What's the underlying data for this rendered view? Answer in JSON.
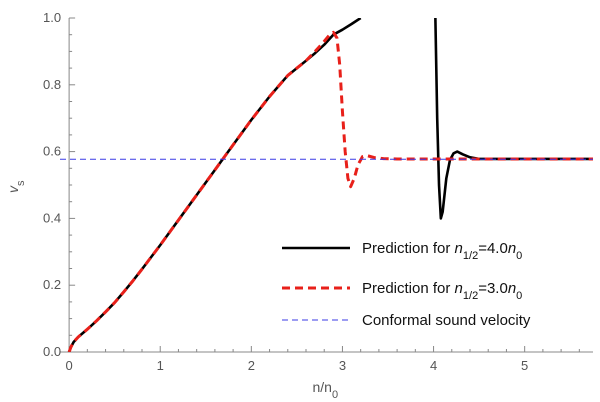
{
  "chart_data": {
    "type": "line",
    "title": "",
    "xlabel": {
      "base": "n/n",
      "sub": "0"
    },
    "ylabel": {
      "base": "v",
      "sub": "s"
    },
    "xlim": [
      -0.1,
      5.75
    ],
    "ylim": [
      0.0,
      1.0
    ],
    "x_ticks": [
      0,
      1,
      2,
      3,
      4,
      5
    ],
    "x_tick_labels": [
      "0",
      "1",
      "2",
      "3",
      "4",
      "5"
    ],
    "y_ticks": [
      0.0,
      0.2,
      0.4,
      0.6,
      0.8,
      1.0
    ],
    "y_tick_labels": [
      "0.0",
      "0.2",
      "0.4",
      "0.6",
      "0.8",
      "1.0"
    ],
    "grid": false,
    "legend_position": "bottom-right",
    "series": [
      {
        "legend": {
          "prefix": "Prediction for ",
          "n": "n",
          "sub": "1/2",
          "mid": "=4.0",
          "n2": "n",
          "sub2": "0"
        },
        "color": "#000000",
        "style": "solid",
        "segments": [
          [
            [
              0.0,
              0.0
            ],
            [
              0.02,
              0.015
            ],
            [
              0.05,
              0.03
            ],
            [
              0.1,
              0.045
            ],
            [
              0.2,
              0.068
            ],
            [
              0.3,
              0.093
            ],
            [
              0.4,
              0.12
            ],
            [
              0.5,
              0.148
            ],
            [
              0.6,
              0.18
            ],
            [
              0.7,
              0.213
            ],
            [
              0.8,
              0.248
            ],
            [
              0.9,
              0.284
            ],
            [
              1.0,
              0.32
            ],
            [
              1.2,
              0.395
            ],
            [
              1.4,
              0.47
            ],
            [
              1.6,
              0.545
            ],
            [
              1.8,
              0.62
            ],
            [
              2.0,
              0.695
            ],
            [
              2.2,
              0.765
            ],
            [
              2.4,
              0.828
            ],
            [
              2.6,
              0.872
            ],
            [
              2.7,
              0.895
            ],
            [
              2.8,
              0.92
            ],
            [
              2.9,
              0.95
            ],
            [
              3.0,
              0.965
            ],
            [
              3.1,
              0.982
            ],
            [
              3.2,
              1.0
            ]
          ],
          [
            [
              4.02,
              1.0
            ],
            [
              4.03,
              0.85
            ],
            [
              4.04,
              0.7
            ],
            [
              4.06,
              0.5
            ],
            [
              4.08,
              0.4
            ],
            [
              4.1,
              0.42
            ],
            [
              4.14,
              0.52
            ],
            [
              4.18,
              0.575
            ],
            [
              4.22,
              0.595
            ],
            [
              4.26,
              0.6
            ],
            [
              4.32,
              0.592
            ],
            [
              4.4,
              0.583
            ],
            [
              4.5,
              0.578
            ],
            [
              4.7,
              0.578
            ],
            [
              5.0,
              0.578
            ],
            [
              5.3,
              0.578
            ],
            [
              5.6,
              0.578
            ],
            [
              5.75,
              0.578
            ]
          ]
        ]
      },
      {
        "legend": {
          "prefix": "Prediction for ",
          "n": "n",
          "sub": "1/2",
          "mid": "=3.0",
          "n2": "n",
          "sub2": "0"
        },
        "color": "#e8201a",
        "style": "dashed",
        "segments": [
          [
            [
              0.0,
              0.0
            ],
            [
              0.02,
              0.015
            ],
            [
              0.05,
              0.03
            ],
            [
              0.1,
              0.045
            ],
            [
              0.2,
              0.068
            ],
            [
              0.3,
              0.093
            ],
            [
              0.4,
              0.12
            ],
            [
              0.5,
              0.148
            ],
            [
              0.6,
              0.18
            ],
            [
              0.7,
              0.213
            ],
            [
              0.8,
              0.248
            ],
            [
              0.9,
              0.284
            ],
            [
              1.0,
              0.32
            ],
            [
              1.2,
              0.395
            ],
            [
              1.4,
              0.47
            ],
            [
              1.6,
              0.545
            ],
            [
              1.8,
              0.62
            ],
            [
              2.0,
              0.695
            ],
            [
              2.2,
              0.765
            ],
            [
              2.4,
              0.828
            ],
            [
              2.6,
              0.872
            ],
            [
              2.7,
              0.9
            ],
            [
              2.8,
              0.93
            ],
            [
              2.86,
              0.95
            ],
            [
              2.9,
              0.957
            ],
            [
              2.94,
              0.94
            ],
            [
              2.97,
              0.86
            ],
            [
              3.0,
              0.72
            ],
            [
              3.03,
              0.6
            ],
            [
              3.06,
              0.52
            ],
            [
              3.09,
              0.495
            ],
            [
              3.13,
              0.52
            ],
            [
              3.17,
              0.56
            ],
            [
              3.22,
              0.585
            ],
            [
              3.27,
              0.588
            ],
            [
              3.35,
              0.582
            ],
            [
              3.45,
              0.579
            ],
            [
              3.6,
              0.578
            ],
            [
              4.0,
              0.578
            ],
            [
              4.5,
              0.578
            ],
            [
              5.0,
              0.578
            ],
            [
              5.5,
              0.578
            ],
            [
              5.75,
              0.578
            ]
          ]
        ]
      },
      {
        "legend": {
          "prefix": "Conformal sound velocity"
        },
        "color": "#3a3ae6",
        "style": "dashed-thin",
        "segments": [
          [
            [
              -0.1,
              0.577
            ],
            [
              5.75,
              0.577
            ]
          ]
        ]
      }
    ]
  }
}
